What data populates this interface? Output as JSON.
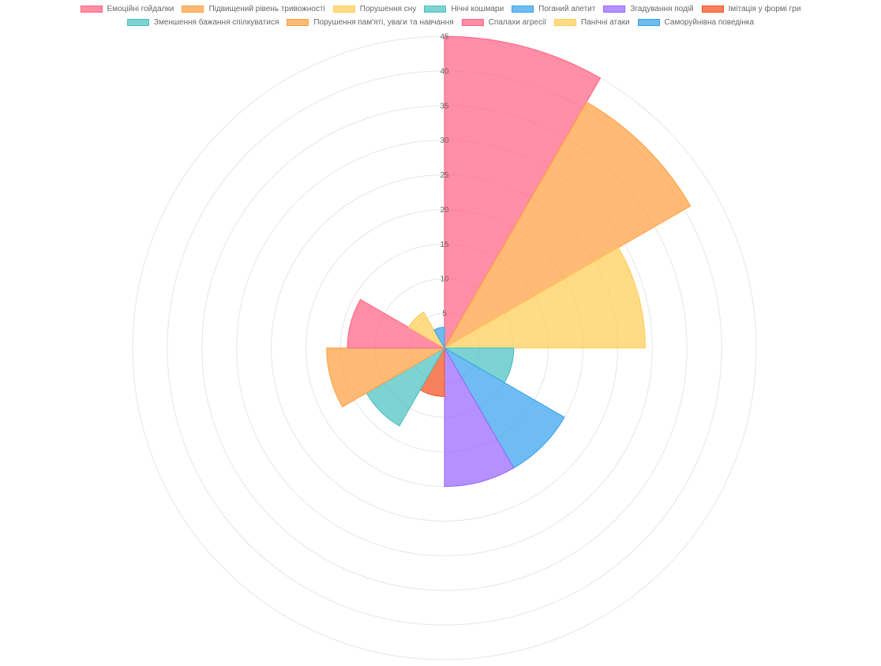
{
  "chart_data": {
    "type": "polarArea",
    "title": "",
    "r_min": 0,
    "r_max": 45,
    "r_ticks": [
      5,
      10,
      15,
      20,
      25,
      30,
      35,
      40,
      45
    ],
    "grid": true,
    "legend_position": "top",
    "categories": [
      {
        "label": "Емоційні гойдалки",
        "value": 45,
        "color": "#ff6384"
      },
      {
        "label": "Підвищений рівень тривожності",
        "value": 41,
        "color": "#ff9f40"
      },
      {
        "label": "Порушення сну",
        "value": 29,
        "color": "#ffcd56"
      },
      {
        "label": "Нічні кошмари",
        "value": 10,
        "color": "#4bc0c0"
      },
      {
        "label": "Поганий апетит",
        "value": 20,
        "color": "#36a2eb"
      },
      {
        "label": "Згадування подій",
        "value": 20,
        "color": "#9966ff"
      },
      {
        "label": "Імітація у формі гри",
        "value": 7,
        "color": "#f4511e"
      },
      {
        "label": "Зменшення бажання спілкуватися",
        "value": 13,
        "color": "#4bc0c0"
      },
      {
        "label": "Порушення пам'яті, уваги та навчання",
        "value": 17,
        "color": "#ff9f40"
      },
      {
        "label": "Спалахи агресії",
        "value": 14,
        "color": "#ff6384"
      },
      {
        "label": "Панічні атаки",
        "value": 6,
        "color": "#ffcd56"
      },
      {
        "label": "Саморуйнівна поведінка",
        "value": 3,
        "color": "#36a2eb"
      }
    ]
  }
}
